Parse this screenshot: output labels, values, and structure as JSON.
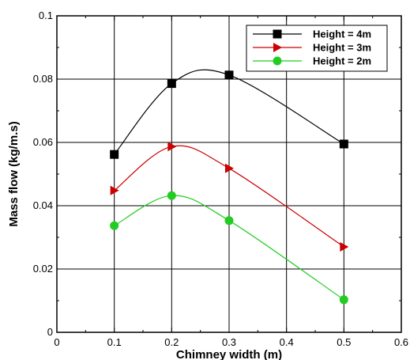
{
  "chart_data": {
    "type": "line",
    "xlabel": "Chimney width (m)",
    "ylabel": "Mass flow (kg/m.s)",
    "xlim": [
      0,
      0.6
    ],
    "ylim": [
      0,
      0.1
    ],
    "x_ticks": [
      "0",
      "0.1",
      "0.2",
      "0.3",
      "0.4",
      "0.5",
      "0.6"
    ],
    "y_ticks": [
      "0",
      "0.02",
      "0.04",
      "0.06",
      "0.08",
      "0.1"
    ],
    "grid": true,
    "legend_position": "top-right",
    "series": [
      {
        "name": "Height = 4m",
        "color": "#000000",
        "marker": "square",
        "x": [
          0.1,
          0.2,
          0.3,
          0.5
        ],
        "y": [
          0.0562,
          0.0786,
          0.0813,
          0.0595
        ]
      },
      {
        "name": "Height = 3m",
        "color": "#cc0000",
        "marker": "triangle-right",
        "x": [
          0.1,
          0.2,
          0.3,
          0.5
        ],
        "y": [
          0.0448,
          0.0587,
          0.0518,
          0.027
        ]
      },
      {
        "name": "Height = 2m",
        "color": "#22cc22",
        "marker": "circle",
        "x": [
          0.1,
          0.2,
          0.3,
          0.5
        ],
        "y": [
          0.0337,
          0.0432,
          0.0353,
          0.0103
        ]
      }
    ]
  }
}
